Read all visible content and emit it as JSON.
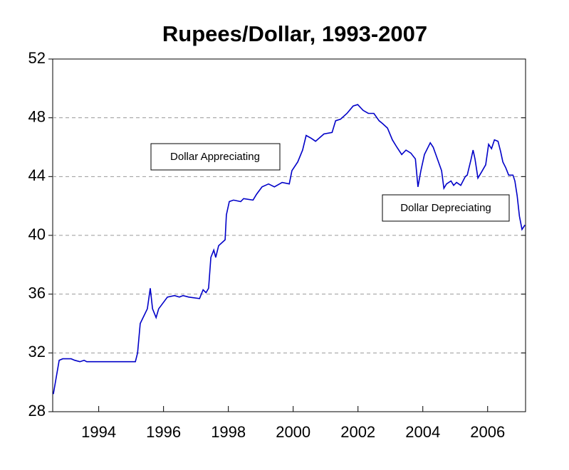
{
  "chart_data": {
    "type": "line",
    "title": "Rupees/Dollar, 1993-2007",
    "annotations": [
      "Dollar Appreciating",
      "Dollar Depreciating"
    ],
    "xlim": [
      1993.08,
      2007.67
    ],
    "xticks": [
      {
        "value": 1994.5,
        "label": "1994"
      },
      {
        "value": 1996.5,
        "label": "1996"
      },
      {
        "value": 1998.5,
        "label": "1998"
      },
      {
        "value": 2000.5,
        "label": "2000"
      },
      {
        "value": 2002.5,
        "label": "2002"
      },
      {
        "value": 2004.5,
        "label": "2004"
      },
      {
        "value": 2006.5,
        "label": "2006"
      }
    ],
    "ylim": [
      28,
      52
    ],
    "yticks": [
      28,
      32,
      36,
      40,
      44,
      48,
      52
    ],
    "grid": true,
    "series": [
      {
        "color": "#0000c8",
        "x": [
          1993.1,
          1993.28,
          1993.39,
          1993.65,
          1993.76,
          1993.92,
          1994.05,
          1994.13,
          1995.3,
          1995.63,
          1995.7,
          1995.78,
          1996.0,
          1996.09,
          1996.16,
          1996.27,
          1996.35,
          1996.62,
          1996.84,
          1996.99,
          1997.1,
          1997.28,
          1997.61,
          1997.72,
          1997.81,
          1997.89,
          1997.96,
          1998.05,
          1998.11,
          1998.2,
          1998.4,
          1998.44,
          1998.53,
          1998.66,
          1998.88,
          1998.97,
          1999.26,
          1999.37,
          1999.54,
          1999.74,
          1999.92,
          2000.16,
          2000.38,
          2000.46,
          2000.64,
          2000.79,
          2000.9,
          2001.06,
          2001.19,
          2001.45,
          2001.7,
          2001.81,
          2001.96,
          2002.16,
          2002.35,
          2002.49,
          2002.66,
          2002.82,
          2002.99,
          2003.15,
          2003.26,
          2003.41,
          2003.56,
          2003.7,
          2003.85,
          2003.98,
          2004.13,
          2004.27,
          2004.35,
          2004.44,
          2004.55,
          2004.73,
          2004.82,
          2004.95,
          2005.08,
          2005.15,
          2005.23,
          2005.37,
          2005.45,
          2005.54,
          2005.67,
          2005.81,
          2005.87,
          2005.98,
          2006.05,
          2006.11,
          2006.2,
          2006.31,
          2006.44,
          2006.53,
          2006.62,
          2006.71,
          2006.82,
          2006.9,
          2006.97,
          2007.06,
          2007.15,
          2007.28,
          2007.34,
          2007.41,
          2007.48,
          2007.56,
          2007.65
        ],
        "values": [
          29.2,
          31.5,
          31.6,
          31.6,
          31.5,
          31.4,
          31.5,
          31.4,
          31.4,
          31.4,
          32.0,
          34.0,
          35.0,
          36.4,
          35.0,
          34.4,
          35.0,
          35.8,
          35.9,
          35.8,
          35.9,
          35.8,
          35.7,
          36.3,
          36.1,
          36.4,
          38.5,
          39.0,
          38.5,
          39.3,
          39.7,
          41.4,
          42.3,
          42.4,
          42.3,
          42.5,
          42.4,
          42.8,
          43.3,
          43.5,
          43.3,
          43.6,
          43.5,
          44.4,
          45.0,
          45.8,
          46.8,
          46.6,
          46.4,
          46.9,
          47.0,
          47.8,
          47.9,
          48.3,
          48.8,
          48.9,
          48.5,
          48.3,
          48.3,
          47.8,
          47.6,
          47.3,
          46.5,
          46.0,
          45.5,
          45.8,
          45.6,
          45.2,
          43.3,
          44.4,
          45.5,
          46.3,
          46.0,
          45.2,
          44.4,
          43.2,
          43.5,
          43.7,
          43.4,
          43.6,
          43.4,
          44.0,
          44.1,
          45.1,
          45.8,
          45.2,
          43.9,
          44.3,
          44.8,
          46.2,
          45.9,
          46.5,
          46.4,
          45.7,
          45.0,
          44.6,
          44.1,
          44.1,
          43.7,
          42.7,
          41.3,
          40.4,
          40.7
        ]
      }
    ]
  }
}
